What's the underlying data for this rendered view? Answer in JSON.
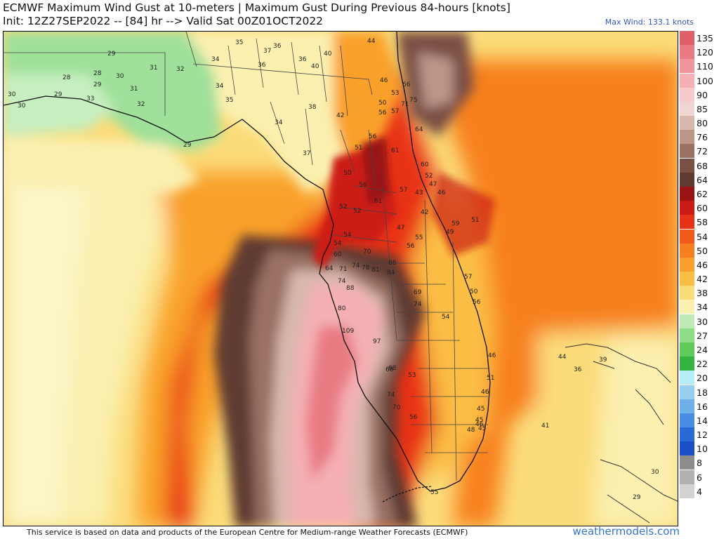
{
  "header": {
    "title_line1": "ECMWF Maximum Wind Gust at 10-meters | Maximum Gust During Previous 84-hours [knots]",
    "title_line2": "Init: 12Z27SEP2022 -- [84] hr --> Valid Sat 00Z01OCT2022",
    "max_wind": "Max Wind: 133.1 knots"
  },
  "legend": {
    "unit": "knots",
    "entries": [
      {
        "label": "135",
        "color": "#e0606a"
      },
      {
        "label": "120",
        "color": "#e87a82"
      },
      {
        "label": "110",
        "color": "#ef959b"
      },
      {
        "label": "100",
        "color": "#f4b0b4"
      },
      {
        "label": "90",
        "color": "#f8cacc"
      },
      {
        "label": "85",
        "color": "#efd6d2"
      },
      {
        "label": "80",
        "color": "#d8b7ad"
      },
      {
        "label": "76",
        "color": "#bd968a"
      },
      {
        "label": "72",
        "color": "#9a7163"
      },
      {
        "label": "68",
        "color": "#7a5045"
      },
      {
        "label": "64",
        "color": "#5e3a31"
      },
      {
        "label": "62",
        "color": "#9a1414"
      },
      {
        "label": "60",
        "color": "#cc1a16"
      },
      {
        "label": "58",
        "color": "#e83218"
      },
      {
        "label": "54",
        "color": "#f25a1c"
      },
      {
        "label": "50",
        "color": "#f7801e"
      },
      {
        "label": "46",
        "color": "#f9a02c"
      },
      {
        "label": "42",
        "color": "#fbbe44"
      },
      {
        "label": "38",
        "color": "#fbdc7a"
      },
      {
        "label": "34",
        "color": "#fbf0b0"
      },
      {
        "label": "30",
        "color": "#bfeab5"
      },
      {
        "label": "27",
        "color": "#8fdc88"
      },
      {
        "label": "24",
        "color": "#5fcb5b"
      },
      {
        "label": "22",
        "color": "#35b441"
      },
      {
        "label": "20",
        "color": "#b8ecf6"
      },
      {
        "label": "18",
        "color": "#98cff0"
      },
      {
        "label": "16",
        "color": "#6eb0ea"
      },
      {
        "label": "14",
        "color": "#4a8ee3"
      },
      {
        "label": "12",
        "color": "#2a6ad6"
      },
      {
        "label": "10",
        "color": "#1a4fc8"
      },
      {
        "label": "8",
        "color": "#8c8c8c"
      },
      {
        "label": "6",
        "color": "#b0b0b0"
      },
      {
        "label": "4",
        "color": "#d2d2d2"
      }
    ]
  },
  "station_values": [
    {
      "v": "35"
    },
    {
      "v": "37"
    },
    {
      "v": "36"
    },
    {
      "v": "40"
    },
    {
      "v": "44"
    },
    {
      "v": "29"
    },
    {
      "v": "34"
    },
    {
      "v": "36"
    },
    {
      "v": "36"
    },
    {
      "v": "40"
    },
    {
      "v": "28"
    },
    {
      "v": "28"
    },
    {
      "v": "30"
    },
    {
      "v": "31"
    },
    {
      "v": "32"
    },
    {
      "v": "29"
    },
    {
      "v": "31"
    },
    {
      "v": "34"
    },
    {
      "v": "35"
    },
    {
      "v": "30"
    },
    {
      "v": "29"
    },
    {
      "v": "33"
    },
    {
      "v": "32"
    },
    {
      "v": "30"
    },
    {
      "v": "38"
    },
    {
      "v": "42"
    },
    {
      "v": "34"
    },
    {
      "v": "37"
    },
    {
      "v": "29"
    },
    {
      "v": "46"
    },
    {
      "v": "53"
    },
    {
      "v": "66"
    },
    {
      "v": "50"
    },
    {
      "v": "71"
    },
    {
      "v": "75"
    },
    {
      "v": "56"
    },
    {
      "v": "57"
    },
    {
      "v": "56"
    },
    {
      "v": "51"
    },
    {
      "v": "61"
    },
    {
      "v": "64"
    },
    {
      "v": "60"
    },
    {
      "v": "50"
    },
    {
      "v": "52"
    },
    {
      "v": "47"
    },
    {
      "v": "56"
    },
    {
      "v": "57"
    },
    {
      "v": "43"
    },
    {
      "v": "46"
    },
    {
      "v": "61"
    },
    {
      "v": "52"
    },
    {
      "v": "52"
    },
    {
      "v": "42"
    },
    {
      "v": "54"
    },
    {
      "v": "47"
    },
    {
      "v": "59"
    },
    {
      "v": "55"
    },
    {
      "v": "49"
    },
    {
      "v": "54"
    },
    {
      "v": "56"
    },
    {
      "v": "70"
    },
    {
      "v": "60"
    },
    {
      "v": "66"
    },
    {
      "v": "64"
    },
    {
      "v": "71"
    },
    {
      "v": "74"
    },
    {
      "v": "78"
    },
    {
      "v": "81"
    },
    {
      "v": "84"
    },
    {
      "v": "74"
    },
    {
      "v": "88"
    },
    {
      "v": "69"
    },
    {
      "v": "57"
    },
    {
      "v": "74"
    },
    {
      "v": "80"
    },
    {
      "v": "54"
    },
    {
      "v": "56"
    },
    {
      "v": "109"
    },
    {
      "v": "97"
    },
    {
      "v": "46"
    },
    {
      "v": "68"
    },
    {
      "v": "68"
    },
    {
      "v": "53"
    },
    {
      "v": "51"
    },
    {
      "v": "46"
    },
    {
      "v": "74"
    },
    {
      "v": "45"
    },
    {
      "v": "70"
    },
    {
      "v": "56"
    },
    {
      "v": "45"
    },
    {
      "v": "46"
    },
    {
      "v": "45"
    },
    {
      "v": "48"
    },
    {
      "v": "55"
    },
    {
      "v": "44"
    },
    {
      "v": "36"
    },
    {
      "v": "39"
    },
    {
      "v": "41"
    },
    {
      "v": "30"
    },
    {
      "v": "29"
    },
    {
      "v": "50"
    },
    {
      "v": "51"
    }
  ],
  "footer": {
    "disclaimer": "This service is based on data and products of the European Centre for Medium-range Weather Forecasts (ECMWF)",
    "brand": "weathermodels.com"
  }
}
